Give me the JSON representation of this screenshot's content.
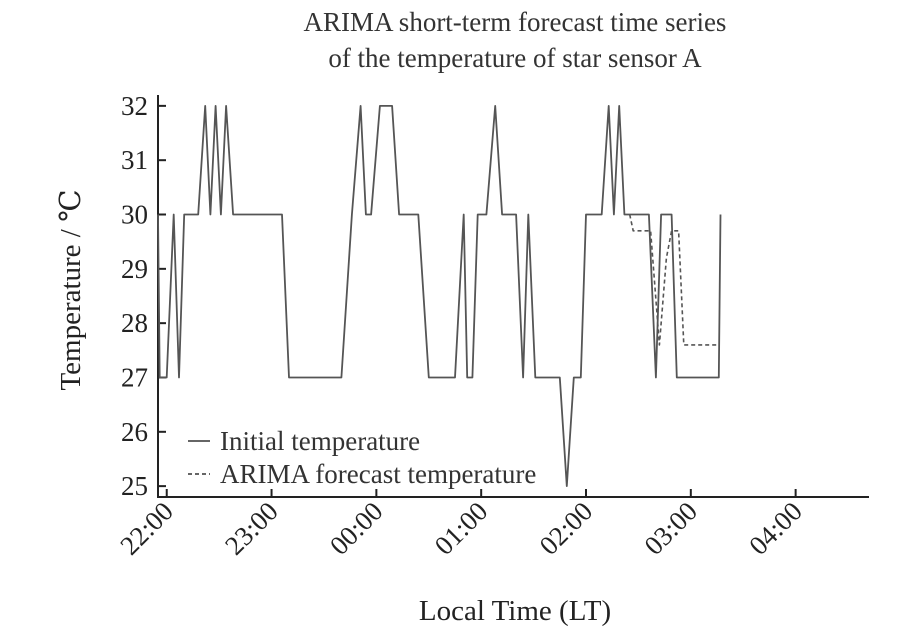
{
  "chart_data": {
    "type": "line",
    "title_lines": [
      "ARIMA short-term forecast time series",
      "of the temperature of star sensor A"
    ],
    "xlabel": "Local Time (LT)",
    "ylabel": "Temperature / ℃",
    "x_ticks": [
      "22:00",
      "23:00",
      "00:00",
      "01:00",
      "02:00",
      "03:00",
      "04:00"
    ],
    "y_ticks": [
      "25",
      "26",
      "27",
      "28",
      "29",
      "30",
      "31",
      "32"
    ],
    "xlim": [
      "21:55",
      "04:42"
    ],
    "ylim": [
      24.8,
      32.2
    ],
    "grid": false,
    "legend_position": "bottom-left",
    "series": [
      {
        "name": "Initial temperature",
        "color": "#555555",
        "dash": "solid",
        "points": [
          [
            "21:55",
            30
          ],
          [
            "21:56",
            27
          ],
          [
            "22:00",
            27
          ],
          [
            "22:04",
            30
          ],
          [
            "22:07",
            27
          ],
          [
            "22:10",
            30
          ],
          [
            "22:18",
            30
          ],
          [
            "22:22",
            32
          ],
          [
            "22:25",
            30
          ],
          [
            "22:28",
            32
          ],
          [
            "22:31",
            30
          ],
          [
            "22:34",
            32
          ],
          [
            "22:38",
            30
          ],
          [
            "23:06",
            30
          ],
          [
            "23:10",
            27
          ],
          [
            "23:40",
            27
          ],
          [
            "23:46",
            30
          ],
          [
            "23:51",
            32
          ],
          [
            "23:54",
            30
          ],
          [
            "23:57",
            30
          ],
          [
            "24:02",
            32
          ],
          [
            "24:09",
            32
          ],
          [
            "24:13",
            30
          ],
          [
            "24:24",
            30
          ],
          [
            "24:30",
            27
          ],
          [
            "24:45",
            27
          ],
          [
            "24:50",
            30
          ],
          [
            "24:52",
            27
          ],
          [
            "24:55",
            27
          ],
          [
            "24:58",
            30
          ],
          [
            "25:03",
            30
          ],
          [
            "25:08",
            32
          ],
          [
            "25:12",
            30
          ],
          [
            "25:20",
            30
          ],
          [
            "25:24",
            27
          ],
          [
            "25:27",
            30
          ],
          [
            "25:31",
            27
          ],
          [
            "25:43",
            27
          ],
          [
            "25:45",
            27
          ],
          [
            "25:49",
            25
          ],
          [
            "25:53",
            27
          ],
          [
            "25:57",
            27
          ],
          [
            "26:00",
            30
          ],
          [
            "26:09",
            30
          ],
          [
            "26:13",
            32
          ],
          [
            "26:16",
            30
          ],
          [
            "26:19",
            32
          ],
          [
            "26:22",
            30
          ],
          [
            "26:24",
            30
          ],
          [
            "26:26",
            30
          ],
          [
            "26:36",
            30
          ],
          [
            "26:40",
            27
          ],
          [
            "26:43",
            30
          ],
          [
            "26:49",
            30
          ],
          [
            "26:52",
            27
          ],
          [
            "27:00",
            27
          ],
          [
            "27:08",
            27
          ],
          [
            "27:12",
            27
          ],
          [
            "27:16",
            27
          ],
          [
            "27:17",
            30
          ]
        ]
      },
      {
        "name": "ARIMA forecast temperature",
        "color": "#555555",
        "dash": "dashed",
        "points": [
          [
            "26:25",
            30
          ],
          [
            "26:27",
            29.7
          ],
          [
            "26:37",
            29.7
          ],
          [
            "26:42",
            27.6
          ],
          [
            "26:46",
            29.2
          ],
          [
            "26:49",
            29.7
          ],
          [
            "26:53",
            29.7
          ],
          [
            "26:56",
            27.6
          ],
          [
            "27:16",
            27.6
          ]
        ]
      }
    ]
  }
}
